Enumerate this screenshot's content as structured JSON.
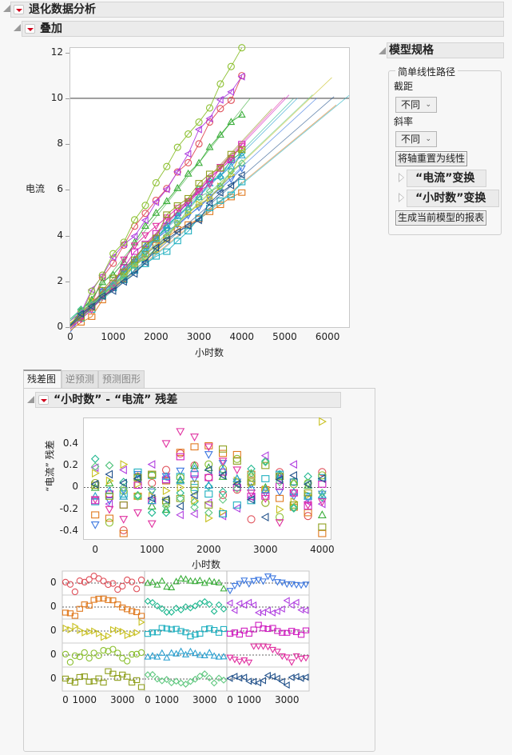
{
  "report": {
    "title": "退化数据分析",
    "overlay_section": {
      "title": "叠加"
    },
    "model_spec": {
      "title": "模型规格",
      "group_title": "简单线性路径",
      "intercept_label": "截距",
      "intercept_value": "不同",
      "slope_label": "斜率",
      "slope_value": "不同",
      "reset_axes_button": "将轴重置为线性",
      "y_transform_label": "“电流”变换",
      "x_transform_label": "“小时数”变换",
      "generate_report_button": "生成当前模型的报表"
    },
    "tabs": [
      {
        "label": "残差图",
        "active": true
      },
      {
        "label": "逆预测",
        "active": false
      },
      {
        "label": "预测图形",
        "active": false
      }
    ],
    "residual_section": {
      "title": "“小时数” - “电流” 残差"
    }
  },
  "colors": {
    "red": "#e0505a",
    "green": "#3aae3a",
    "blue": "#3d78e0",
    "orange": "#e07a20",
    "teal": "#20b890",
    "purple": "#b040e0",
    "yellow": "#c8c020",
    "cyan": "#20b0c0",
    "magenta": "#d020c0",
    "lime": "#8cc030",
    "skyblue": "#2aa0d0",
    "pink": "#e030a0",
    "olive": "#90a020",
    "mint": "#60c880",
    "navy": "#20508a"
  },
  "chart_data": [
    {
      "type": "line",
      "title": "叠加",
      "xlabel": "小时数",
      "ylabel": "电流",
      "xlim": [
        0,
        6500
      ],
      "ylim": [
        0,
        12.2
      ],
      "x_ticks": [
        "0",
        "1000",
        "2000",
        "3000",
        "4000",
        "5000",
        "6000"
      ],
      "y_ticks": [
        "0",
        "2",
        "4",
        "6",
        "8",
        "10",
        "12"
      ],
      "threshold_line": 10,
      "x": [
        0,
        250,
        500,
        750,
        1000,
        1250,
        1500,
        1750,
        2000,
        2250,
        2500,
        2750,
        3000,
        3250,
        3500,
        3750,
        4000
      ],
      "series": [
        {
          "name": "1",
          "color": "red",
          "marker": "circle",
          "slope": 0.0027,
          "intercept": 0.05,
          "end_x": 4000,
          "extrap_x": null
        },
        {
          "name": "2",
          "color": "green",
          "marker": "triangle-up",
          "slope": 0.00236,
          "intercept": 0.1,
          "end_x": 4000,
          "extrap_x": 4200
        },
        {
          "name": "3",
          "color": "blue",
          "marker": "triangle-down",
          "slope": 0.00172,
          "intercept": 0.12,
          "end_x": 4000,
          "extrap_x": 5750
        },
        {
          "name": "4",
          "color": "orange",
          "marker": "square",
          "slope": 0.00155,
          "intercept": 0.1,
          "end_x": 4000,
          "extrap_x": 6200
        },
        {
          "name": "5",
          "color": "teal",
          "marker": "diamond",
          "slope": 0.0019,
          "intercept": 0.1,
          "end_x": 4000,
          "extrap_x": 5200
        },
        {
          "name": "6",
          "color": "purple",
          "marker": "triangle-left",
          "slope": 0.00275,
          "intercept": 0.1,
          "end_x": 4000,
          "extrap_x": null
        },
        {
          "name": "7",
          "color": "yellow",
          "marker": "triangle-right",
          "slope": 0.00178,
          "intercept": 0.05,
          "end_x": 4000,
          "extrap_x": 6100
        },
        {
          "name": "8",
          "color": "cyan",
          "marker": "square",
          "slope": 0.00155,
          "intercept": 0.05,
          "end_x": 4000,
          "extrap_x": 6500
        },
        {
          "name": "9",
          "color": "magenta",
          "marker": "square",
          "slope": 0.00198,
          "intercept": 0.05,
          "end_x": 4000,
          "extrap_x": 5100
        },
        {
          "name": "10",
          "color": "lime",
          "marker": "circle",
          "slope": 0.003,
          "intercept": 0.1,
          "end_x": 4000,
          "extrap_x": null
        },
        {
          "name": "11",
          "color": "skyblue",
          "marker": "triangle-up",
          "slope": 0.00187,
          "intercept": 0.1,
          "end_x": 4000,
          "extrap_x": 5300
        },
        {
          "name": "12",
          "color": "pink",
          "marker": "triangle-down",
          "slope": 0.002,
          "intercept": 0.05,
          "end_x": 4000,
          "extrap_x": 5000
        },
        {
          "name": "13",
          "color": "olive",
          "marker": "square",
          "slope": 0.00203,
          "intercept": 0.0,
          "end_x": 4000,
          "extrap_x": 4700
        },
        {
          "name": "14",
          "color": "mint",
          "marker": "diamond",
          "slope": 0.00178,
          "intercept": 0.1,
          "end_x": 4000,
          "extrap_x": 5650
        },
        {
          "name": "15",
          "color": "navy",
          "marker": "triangle-left",
          "slope": 0.00163,
          "intercept": 0.05,
          "end_x": 4000,
          "extrap_x": 6150
        }
      ]
    },
    {
      "type": "scatter",
      "title": "“小时数” - “电流” 残差",
      "xlabel": "小时数",
      "ylabel": "“电流” 残差",
      "xlim": [
        -200,
        4150
      ],
      "ylim": [
        -0.47,
        0.63
      ],
      "x_ticks": [
        "0",
        "1000",
        "2000",
        "3000",
        "4000"
      ],
      "y_ticks": [
        "-0.4",
        "-0.2",
        "0",
        "0.2",
        "0.4"
      ],
      "reference_line": 0,
      "x": [
        0,
        250,
        500,
        750,
        1000,
        1250,
        1500,
        1750,
        2000,
        2250,
        2500,
        2750,
        3000,
        3250,
        3500,
        3750,
        4000
      ],
      "residuals": {
        "1": [
          0.04,
          -0.06,
          -0.39,
          0.1,
          0.04,
          0.16,
          0.31,
          0.2,
          0.09,
          -0.07,
          -0.02,
          -0.29,
          -0.14,
          0.14,
          0.05,
          -0.26,
          0.14
        ],
        "2": [
          0.0,
          0.04,
          -0.08,
          0.1,
          -0.17,
          -0.2,
          0.07,
          0.2,
          0.18,
          0.1,
          0.08,
          0.12,
          0.0,
          0.1,
          0.05,
          0.02,
          -0.25
        ],
        "3": [
          -0.34,
          -0.12,
          -0.03,
          0.12,
          -0.04,
          0.1,
          0.15,
          0.08,
          0.3,
          0.22,
          0.05,
          0.03,
          -0.05,
          -0.04,
          -0.08,
          -0.1,
          -0.06
        ],
        "4": [
          -0.25,
          -0.28,
          -0.42,
          -0.08,
          0.12,
          0.06,
          0.32,
          0.37,
          0.38,
          0.31,
          0.3,
          0.12,
          -0.02,
          -0.1,
          -0.18,
          -0.23,
          -0.42
        ],
        "5": [
          0.26,
          0.2,
          0.05,
          -0.07,
          -0.23,
          -0.23,
          -0.05,
          -0.13,
          0.01,
          -0.04,
          0.05,
          0.17,
          0.24,
          0.12,
          -0.19,
          0.1,
          -0.09
        ],
        "6": [
          0.18,
          -0.15,
          0.16,
          0.08,
          0.21,
          0.09,
          -0.25,
          -0.24,
          -0.14,
          -0.26,
          -0.19,
          -0.09,
          0.29,
          0.08,
          0.21,
          -0.13,
          -0.15
        ],
        "7": [
          0.13,
          0.06,
          0.21,
          0.03,
          -0.08,
          -0.03,
          0.0,
          -0.12,
          -0.28,
          -0.22,
          0.06,
          0.04,
          -0.02,
          -0.2,
          -0.13,
          -0.07,
          0.6
        ],
        "8": [
          -0.13,
          -0.06,
          -0.06,
          0.14,
          0.11,
          0.07,
          0.1,
          0.0,
          -0.06,
          -0.24,
          -0.16,
          -0.12,
          0.08,
          0.12,
          0.05,
          -0.08,
          0.09
        ],
        "9": [
          -0.12,
          -0.06,
          -0.16,
          0.02,
          -0.12,
          0.07,
          0.28,
          0.12,
          0.09,
          0.14,
          0.0,
          -0.08,
          -0.08,
          0.01,
          -0.05,
          -0.17,
          0.03
        ],
        "10": [
          0.04,
          -0.32,
          -0.03,
          -0.08,
          0.11,
          -0.14,
          0.09,
          -0.03,
          0.21,
          0.17,
          0.26,
          0.09,
          -0.14,
          -0.27,
          0.03,
          0.04,
          0.11
        ],
        "11": [
          -0.08,
          -0.03,
          -0.08,
          0.09,
          -0.12,
          0.1,
          0.06,
          0.17,
          0.02,
          0.16,
          0.08,
          0.0,
          -0.02,
          0.11,
          -0.04,
          -0.08,
          -0.07
        ],
        "12": [
          -0.11,
          -0.2,
          -0.29,
          -0.23,
          -0.33,
          0.4,
          0.51,
          0.46,
          0.37,
          0.24,
          0.16,
          -0.05,
          -0.1,
          -0.32,
          -0.05,
          -0.16,
          -0.13
        ],
        "13": [
          0.02,
          -0.08,
          -0.16,
          0.09,
          0.12,
          -0.12,
          -0.1,
          0.03,
          -0.16,
          0.35,
          0.24,
          0.05,
          0.2,
          0.1,
          -0.16,
          -0.05,
          -0.36
        ],
        "14": [
          0.19,
          0.2,
          0.0,
          -0.08,
          -0.02,
          -0.17,
          -0.1,
          -0.18,
          -0.23,
          -0.11,
          -0.01,
          0.13,
          0.23,
          0.05,
          -0.18,
          0.04,
          -0.05
        ],
        "15": [
          0.03,
          0.12,
          0.04,
          0.08,
          -0.1,
          -0.11,
          -0.17,
          -0.07,
          0.16,
          0.11,
          0.03,
          -0.11,
          -0.27,
          0.07,
          0.11,
          0.03,
          0.08
        ]
      }
    },
    {
      "type": "scatter",
      "title": "Residuals by unit (5x3 grid)",
      "layout": "grid",
      "rows": 5,
      "cols": 3,
      "y_tick": "0",
      "x_ticks": [
        "0",
        "1000",
        "3000"
      ],
      "grid_order": [
        [
          "1",
          "2",
          "3"
        ],
        [
          "4",
          "5",
          "6"
        ],
        [
          "7",
          "8",
          "9"
        ],
        [
          "10",
          "11",
          "12"
        ],
        [
          "13",
          "14",
          "15"
        ]
      ]
    }
  ]
}
